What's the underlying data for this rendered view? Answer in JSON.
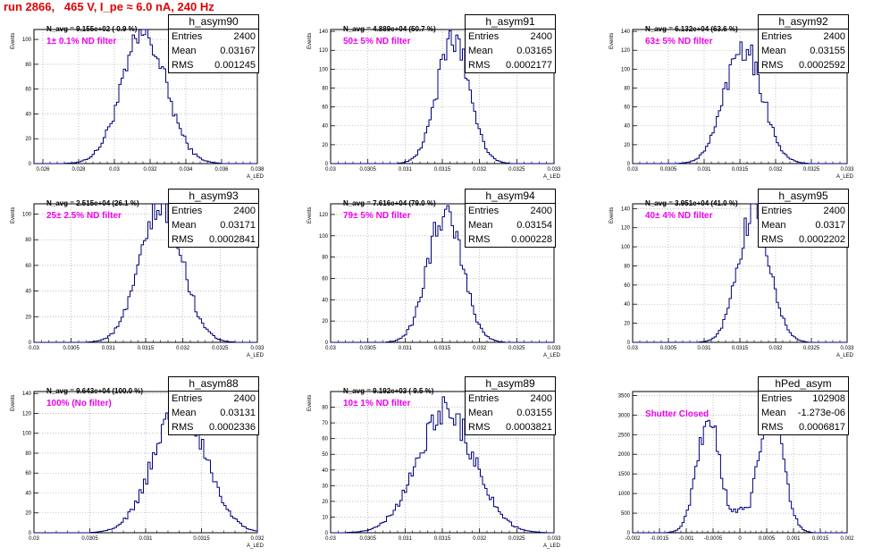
{
  "page_title": "run 2866,   465 V, I_pe ≈ 6.0 nA, 240 Hz",
  "colors": {
    "histogram_line": "#000080",
    "title": "#e00000",
    "annotation": "#ee00ee"
  },
  "stat_labels": {
    "entries": "Entries",
    "mean": "Mean",
    "rms": "RMS"
  },
  "chart_data": [
    {
      "type": "histogram",
      "name": "h_asym90",
      "n_avg": "N_avg = 9.155e+02 ( 0.9 %)",
      "annotation": "1± 0.1% ND filter",
      "ylabel": "Events",
      "xlabel": "A_LED",
      "entries": "2400",
      "mean": "0.03167",
      "rms": "0.001245",
      "xlim": [
        0.0255,
        0.038
      ],
      "ylim": [
        0,
        108
      ],
      "xticks": [
        0.026,
        0.028,
        0.03,
        0.032,
        0.034,
        0.036,
        0.038
      ],
      "xtick_labels": [
        "0.026",
        "0.028",
        "0.03",
        "0.032",
        "0.034",
        "0.036",
        "0.038"
      ],
      "yticks": [
        0,
        20,
        40,
        60,
        80,
        100
      ],
      "grid": true,
      "shape": "gauss",
      "peaks": [
        {
          "mu": 0.03167,
          "sigma": 0.001245,
          "h": 103
        }
      ]
    },
    {
      "type": "histogram",
      "name": "h_asym91",
      "n_avg": "N_avg = 4.889e+04 (50.7 %)",
      "annotation": "50± 5% ND filter",
      "ylabel": "Events",
      "xlabel": "A_LED",
      "entries": "2400",
      "mean": "0.03165",
      "rms": "0.0002177",
      "xlim": [
        0.03,
        0.033
      ],
      "ylim": [
        0,
        142
      ],
      "xticks": [
        0.03,
        0.0305,
        0.031,
        0.0315,
        0.032,
        0.0325,
        0.033
      ],
      "xtick_labels": [
        "0.03",
        "0.0305",
        "0.031",
        "0.0315",
        "0.032",
        "0.0325",
        "0.033"
      ],
      "yticks": [
        0,
        20,
        40,
        60,
        80,
        100,
        120,
        140
      ],
      "grid": true,
      "shape": "gauss",
      "peaks": [
        {
          "mu": 0.03165,
          "sigma": 0.0002177,
          "h": 132
        }
      ]
    },
    {
      "type": "histogram",
      "name": "h_asym92",
      "n_avg": "N_avg = 6.132e+04 (63.6 %)",
      "annotation": "63± 5% ND filter",
      "ylabel": "Events",
      "xlabel": "A_LED",
      "entries": "2400",
      "mean": "0.03155",
      "rms": "0.0002592",
      "xlim": [
        0.03,
        0.033
      ],
      "ylim": [
        0,
        142
      ],
      "xticks": [
        0.03,
        0.0305,
        0.031,
        0.0315,
        0.032,
        0.0325,
        0.033
      ],
      "xtick_labels": [
        "0.03",
        "0.0305",
        "0.031",
        "0.0315",
        "0.032",
        "0.0325",
        "0.033"
      ],
      "yticks": [
        0,
        20,
        40,
        60,
        80,
        100,
        120,
        140
      ],
      "grid": true,
      "shape": "gauss",
      "peaks": [
        {
          "mu": 0.03155,
          "sigma": 0.0002592,
          "h": 127
        }
      ]
    },
    {
      "type": "histogram",
      "name": "h_asym93",
      "n_avg": "N_avg = 2.515e+04 (26.1 %)",
      "annotation": "25± 2.5% ND filter",
      "ylabel": "Events",
      "xlabel": "A_LED",
      "entries": "2400",
      "mean": "0.03171",
      "rms": "0.0002841",
      "xlim": [
        0.03,
        0.033
      ],
      "ylim": [
        0,
        108
      ],
      "xticks": [
        0.03,
        0.0305,
        0.031,
        0.0315,
        0.032,
        0.0325,
        0.033
      ],
      "xtick_labels": [
        "0.03",
        "0.0305",
        "0.031",
        "0.0315",
        "0.032",
        "0.0325",
        "0.033"
      ],
      "yticks": [
        0,
        20,
        40,
        60,
        80,
        100
      ],
      "grid": true,
      "shape": "gauss",
      "peaks": [
        {
          "mu": 0.03171,
          "sigma": 0.0002841,
          "h": 104
        }
      ]
    },
    {
      "type": "histogram",
      "name": "h_asym94",
      "n_avg": "N_avg = 7.616e+04 (79.0 %)",
      "annotation": "79± 5% ND filter",
      "ylabel": "Events",
      "xlabel": "A_LED",
      "entries": "2400",
      "mean": "0.03154",
      "rms": "0.000228",
      "xlim": [
        0.03,
        0.033
      ],
      "ylim": [
        0,
        130
      ],
      "xticks": [
        0.03,
        0.0305,
        0.031,
        0.0315,
        0.032,
        0.0325,
        0.033
      ],
      "xtick_labels": [
        "0.03",
        "0.0305",
        "0.031",
        "0.0315",
        "0.032",
        "0.0325",
        "0.033"
      ],
      "yticks": [
        0,
        20,
        40,
        60,
        80,
        100,
        120
      ],
      "grid": true,
      "shape": "gauss",
      "peaks": [
        {
          "mu": 0.03154,
          "sigma": 0.000228,
          "h": 125
        }
      ]
    },
    {
      "type": "histogram",
      "name": "h_asym95",
      "n_avg": "N_avg = 3.951e+04 (41.0 %)",
      "annotation": "40± 4% ND filter",
      "ylabel": "Events",
      "xlabel": "A_LED",
      "entries": "2400",
      "mean": "0.0317",
      "rms": "0.0002202",
      "xlim": [
        0.03,
        0.033
      ],
      "ylim": [
        0,
        145
      ],
      "xticks": [
        0.03,
        0.0305,
        0.031,
        0.0315,
        0.032,
        0.0325,
        0.033
      ],
      "xtick_labels": [
        "0.03",
        "0.0305",
        "0.031",
        "0.0315",
        "0.032",
        "0.0325",
        "0.033"
      ],
      "yticks": [
        0,
        20,
        40,
        60,
        80,
        100,
        120,
        140
      ],
      "grid": true,
      "shape": "gauss",
      "peaks": [
        {
          "mu": 0.0317,
          "sigma": 0.0002202,
          "h": 136
        }
      ]
    },
    {
      "type": "histogram",
      "name": "h_asym88",
      "n_avg": "N_avg = 9.643e+04 (100.0 %)",
      "annotation": "100% (No filter)",
      "ylabel": "Events",
      "xlabel": "A_LED",
      "entries": "2400",
      "mean": "0.03131",
      "rms": "0.0002336",
      "xlim": [
        0.03,
        0.032
      ],
      "ylim": [
        0,
        142
      ],
      "xticks": [
        0.03,
        0.0305,
        0.031,
        0.0315,
        0.032
      ],
      "xtick_labels": [
        "0.03",
        "0.0305",
        "0.031",
        "0.0315",
        "0.032"
      ],
      "yticks": [
        0,
        20,
        40,
        60,
        80,
        100,
        120,
        140
      ],
      "grid": true,
      "shape": "gauss",
      "peaks": [
        {
          "mu": 0.03131,
          "sigma": 0.0002336,
          "h": 128
        }
      ]
    },
    {
      "type": "histogram",
      "name": "h_asym89",
      "n_avg": "N_avg = 9.192e+03 ( 9.5 %)",
      "annotation": "10± 1% ND filter",
      "ylabel": "Events",
      "xlabel": "A_LED",
      "entries": "2400",
      "mean": "0.03155",
      "rms": "0.0003821",
      "xlim": [
        0.03,
        0.033
      ],
      "ylim": [
        0,
        90
      ],
      "xticks": [
        0.03,
        0.0305,
        0.031,
        0.0315,
        0.032,
        0.0325,
        0.033
      ],
      "xtick_labels": [
        "0.03",
        "0.0305",
        "0.031",
        "0.0315",
        "0.032",
        "0.0325",
        "0.033"
      ],
      "yticks": [
        0,
        10,
        20,
        30,
        40,
        50,
        60,
        70,
        80
      ],
      "grid": true,
      "shape": "gauss",
      "peaks": [
        {
          "mu": 0.03155,
          "sigma": 0.0003821,
          "h": 78
        }
      ]
    },
    {
      "type": "histogram",
      "name": "hPed_asym",
      "n_avg": "",
      "annotation": "Shutter Closed",
      "ylabel": "",
      "xlabel": "",
      "entries": "102908",
      "mean": "-1.273e-06",
      "rms": "0.0006817",
      "xlim": [
        -0.002,
        0.002
      ],
      "ylim": [
        0,
        3600
      ],
      "xticks": [
        -0.002,
        -0.0015,
        -0.001,
        -0.0005,
        0,
        0.0005,
        0.001,
        0.0015,
        0.002
      ],
      "xtick_labels": [
        "-0.002",
        "-0.0015",
        "-0.001",
        "-0.0005",
        "0",
        "0.0005",
        "0.001",
        "0.0015",
        "0.002"
      ],
      "yticks": [
        0,
        500,
        1000,
        1500,
        2000,
        2500,
        3000,
        3500
      ],
      "grid": true,
      "shape": "double",
      "peaks": [
        {
          "mu": -0.00058,
          "sigma": 0.00022,
          "h": 2850
        },
        {
          "mu": 0.00058,
          "sigma": 0.00022,
          "h": 3500
        }
      ],
      "floor": 550
    }
  ]
}
